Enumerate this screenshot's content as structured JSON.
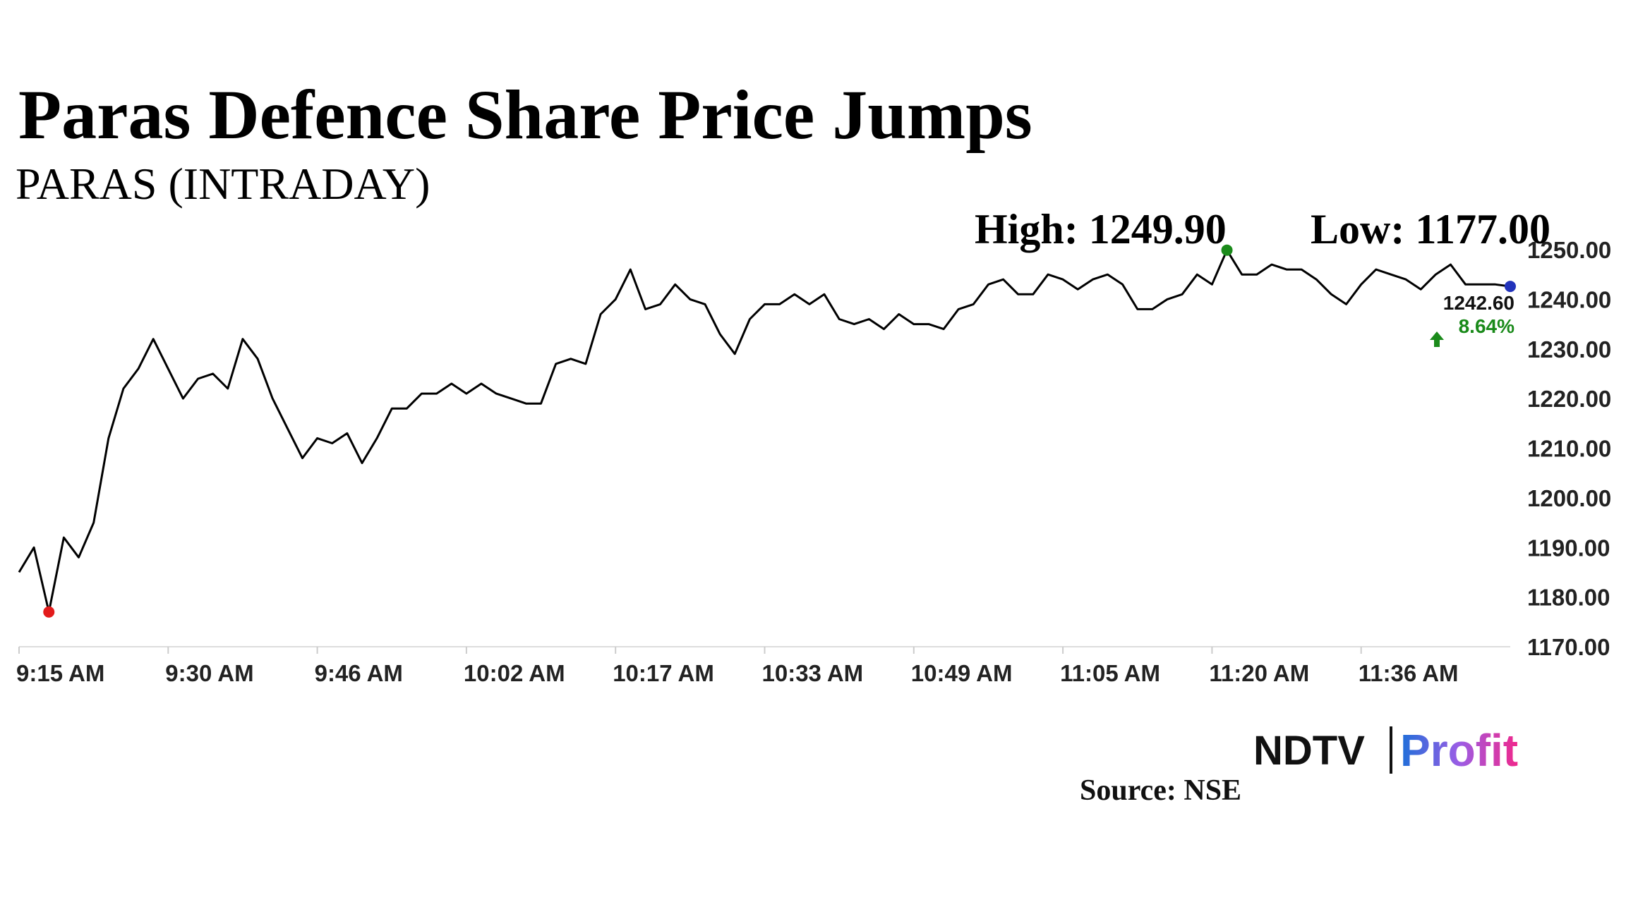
{
  "chart_data": {
    "type": "line",
    "title": "Paras Defence Share Price Jumps",
    "subtitle": "PARAS (INTRADAY)",
    "annotations": {
      "high": "High: 1249.90",
      "low": "Low: 1177.00",
      "last": "1242.60",
      "change": "8.64%"
    },
    "color": "#000000",
    "categories": [
      "9:15 AM",
      null,
      null,
      null,
      null,
      null,
      null,
      null,
      null,
      null,
      "9:30 AM",
      null,
      null,
      null,
      null,
      null,
      null,
      null,
      null,
      null,
      "9:46 AM",
      null,
      null,
      null,
      null,
      null,
      null,
      null,
      null,
      null,
      "10:02 AM",
      null,
      null,
      null,
      null,
      null,
      null,
      null,
      null,
      null,
      "10:17 AM",
      null,
      null,
      null,
      null,
      null,
      null,
      null,
      null,
      null,
      "10:33 AM",
      null,
      null,
      null,
      null,
      null,
      null,
      null,
      null,
      null,
      "10:49 AM",
      null,
      null,
      null,
      null,
      null,
      null,
      null,
      null,
      null,
      "11:05 AM",
      null,
      null,
      null,
      null,
      null,
      null,
      null,
      null,
      null,
      "11:20 AM",
      null,
      null,
      null,
      null,
      null,
      null,
      null,
      null,
      null,
      "11:36 AM",
      null,
      null,
      null,
      null,
      null,
      null,
      null,
      null,
      null,
      null
    ],
    "values": [
      1185,
      1190,
      1177,
      1192,
      1188,
      1195,
      1212,
      1222,
      1226,
      1232,
      1226,
      1220,
      1224,
      1225,
      1222,
      1232,
      1228,
      1220,
      1214,
      1208,
      1212,
      1211,
      1213,
      1207,
      1212,
      1218,
      1218,
      1221,
      1221,
      1223,
      1221,
      1223,
      1221,
      1220,
      1219,
      1219,
      1227,
      1228,
      1227,
      1237,
      1240,
      1246,
      1238,
      1239,
      1243,
      1240,
      1239,
      1233,
      1229,
      1236,
      1239,
      1239,
      1241,
      1239,
      1241,
      1236,
      1235,
      1236,
      1234,
      1237,
      1235,
      1235,
      1234,
      1238,
      1239,
      1243,
      1244,
      1241,
      1241,
      1245,
      1244,
      1242,
      1244,
      1245,
      1243,
      1238,
      1238,
      1240,
      1241,
      1245,
      1243,
      1249.9,
      1245,
      1245,
      1247,
      1246,
      1246,
      1244,
      1241,
      1239,
      1243,
      1246,
      1245,
      1244,
      1242,
      1245,
      1247,
      1243,
      1243,
      1243,
      1242.6
    ],
    "ylim": [
      1170,
      1250
    ],
    "yticks": [
      {
        "value": 1170,
        "label": "1170.00"
      },
      {
        "value": 1180,
        "label": "1180.00"
      },
      {
        "value": 1190,
        "label": "1190.00"
      },
      {
        "value": 1200,
        "label": "1200.00"
      },
      {
        "value": 1210,
        "label": "1210.00"
      },
      {
        "value": 1220,
        "label": "1220.00"
      },
      {
        "value": 1230,
        "label": "1230.00"
      },
      {
        "value": 1240,
        "label": "1240.00"
      },
      {
        "value": 1250,
        "label": "1250.00"
      }
    ],
    "grid": false,
    "brand": {
      "left": "NDTV",
      "right": "Profit"
    },
    "source": "Source: NSE"
  }
}
